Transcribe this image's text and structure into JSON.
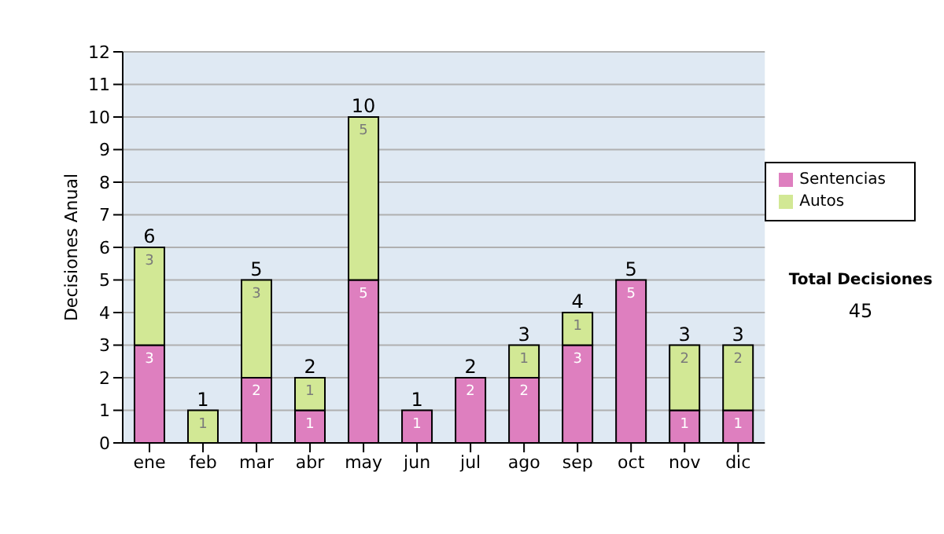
{
  "chart_data": {
    "type": "bar",
    "ylabel": "Decisiones Anual",
    "categories": [
      "ene",
      "feb",
      "mar",
      "abr",
      "may",
      "jun",
      "jul",
      "ago",
      "sep",
      "oct",
      "nov",
      "dic"
    ],
    "stacked": true,
    "series": [
      {
        "name": "Sentencias",
        "color": "#de7fbf",
        "values": [
          3,
          0,
          2,
          1,
          5,
          1,
          2,
          2,
          3,
          5,
          1,
          1
        ],
        "value_labels": [
          "3",
          null,
          "2",
          "1",
          "5",
          "1",
          "2",
          "2",
          "3",
          "5",
          "1",
          "1"
        ]
      },
      {
        "name": "Autos",
        "color": "#d2e895",
        "values": [
          3,
          1,
          3,
          1,
          5,
          0,
          0,
          1,
          1,
          0,
          2,
          2
        ],
        "value_labels": [
          "3",
          "1",
          "3",
          "1",
          "5",
          null,
          null,
          "1",
          "1",
          null,
          "2",
          "2"
        ]
      }
    ],
    "totals": [
      "6",
      "1",
      "5",
      "2",
      "10",
      "1",
      "2",
      "3",
      "4",
      "5",
      "3",
      "3"
    ],
    "ylim": [
      0,
      12
    ],
    "yticks": [
      0,
      1,
      2,
      3,
      4,
      5,
      6,
      7,
      8,
      9,
      10,
      11,
      12
    ],
    "grid": "y",
    "legend": "right",
    "annotations": [
      "Total Decisiones",
      "45"
    ]
  }
}
